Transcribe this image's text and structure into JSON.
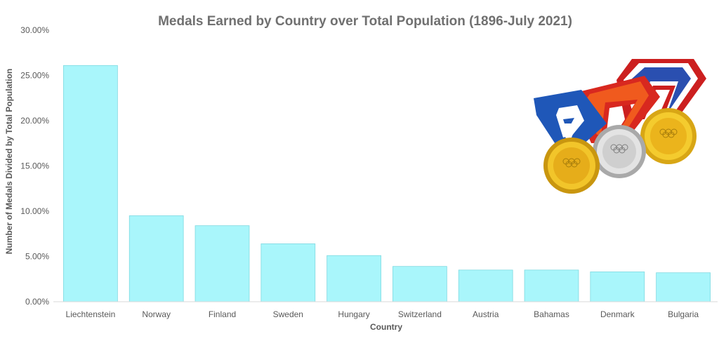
{
  "chart_data": {
    "type": "bar",
    "title": "Medals Earned by Country over Total Population (1896-July 2021)",
    "xlabel": "Country",
    "ylabel": "Number of Medals Divided by Total Population",
    "categories": [
      "Liechtenstein",
      "Norway",
      "Finland",
      "Sweden",
      "Hungary",
      "Switzerland",
      "Austria",
      "Bahamas",
      "Denmark",
      "Bulgaria"
    ],
    "values": [
      26.1,
      9.5,
      8.4,
      6.4,
      5.1,
      3.9,
      3.5,
      3.5,
      3.3,
      3.2
    ],
    "ylim": [
      0,
      30
    ],
    "yticks": [
      "0.00%",
      "5.00%",
      "10.00%",
      "15.00%",
      "20.00%",
      "25.00%",
      "30.00%"
    ],
    "grid": false,
    "legend": "none",
    "bar_color": "#A9F6FB",
    "bar_border_color": "#7FD9E0"
  },
  "decoration": {
    "image": "olympic-medals-illustration"
  }
}
